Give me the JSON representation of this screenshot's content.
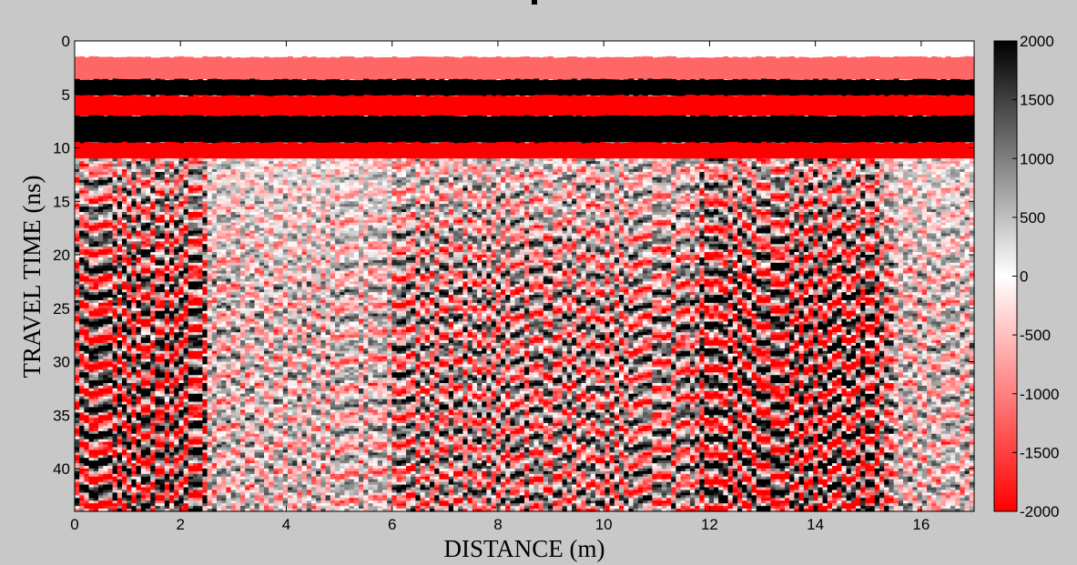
{
  "chart_data": {
    "type": "heatmap",
    "title": "",
    "xlabel": "DISTANCE (m)",
    "ylabel": "TRAVEL TIME (ns)",
    "xlim": [
      0,
      17
    ],
    "ylim": [
      44,
      0
    ],
    "x_ticks": [
      0,
      2,
      4,
      6,
      8,
      10,
      12,
      14,
      16
    ],
    "y_ticks": [
      0,
      5,
      10,
      15,
      20,
      25,
      30,
      35,
      40
    ],
    "x_tick_labels": [
      "0",
      "2",
      "4",
      "6",
      "8",
      "10",
      "12",
      "14",
      "16"
    ],
    "y_tick_labels": [
      "0",
      "5",
      "10",
      "15",
      "20",
      "25",
      "30",
      "35",
      "40"
    ],
    "colormap": {
      "low_color": "#ff0000",
      "mid_color": "#ffffff",
      "high_color": "#000000"
    },
    "colorbar": {
      "range": [
        -2000,
        2000
      ],
      "ticks": [
        2000,
        1500,
        1000,
        500,
        0,
        -500,
        -1000,
        -1500,
        -2000
      ],
      "tick_labels": [
        "2000",
        "1500",
        "1000",
        "500",
        "0",
        "-500",
        "-1000",
        "-1500",
        "-2000"
      ]
    },
    "horizontal_bands": [
      {
        "time_start": 0.0,
        "time_end": 1.5,
        "amplitude": 0
      },
      {
        "time_start": 1.5,
        "time_end": 3.6,
        "amplitude": -1200
      },
      {
        "time_start": 3.6,
        "time_end": 5.1,
        "amplitude": 2000
      },
      {
        "time_start": 5.1,
        "time_end": 7.0,
        "amplitude": -2000
      },
      {
        "time_start": 7.0,
        "time_end": 9.5,
        "amplitude": 2000
      },
      {
        "time_start": 9.5,
        "time_end": 11.0,
        "amplitude": -2000
      }
    ],
    "scatter_zone_start_time": 11.0,
    "dense_reflection_zones": [
      {
        "x_start": 0.0,
        "x_end": 2.5
      },
      {
        "x_start": 11.8,
        "x_end": 15.2
      }
    ],
    "weak_reflection_zones": [
      {
        "x_start": 2.5,
        "x_end": 6.0
      },
      {
        "x_start": 15.5,
        "x_end": 17.0
      }
    ]
  }
}
